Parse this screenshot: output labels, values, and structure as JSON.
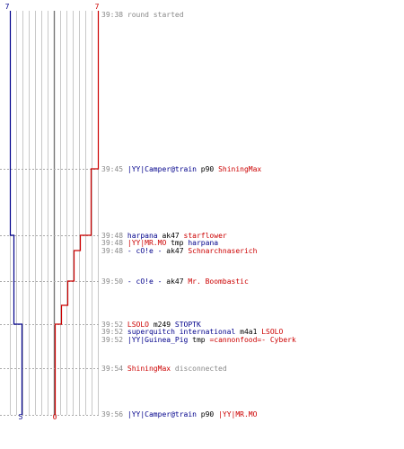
{
  "colors": {
    "team_blue": "#00008b",
    "team_red": "#cc0000",
    "event_text": "#000000",
    "meta_text": "#888888",
    "grid": "#c8c8c8",
    "center_line": "#777777",
    "dash": "#aaaaaa"
  },
  "chart_data": {
    "type": "line",
    "title": "",
    "x_range": [
      -7,
      7
    ],
    "header": {
      "blue_label": "7",
      "red_label": "7"
    },
    "footer": {
      "blue_label": "5",
      "red_label": "0"
    },
    "series": [
      {
        "team": "blue",
        "points": [
          {
            "time": "39:38",
            "count": 7
          },
          {
            "time": "39:48",
            "count": 6
          },
          {
            "time": "39:52",
            "count": 5
          },
          {
            "time": "39:56",
            "count": 5
          }
        ]
      },
      {
        "team": "red",
        "points": [
          {
            "time": "39:38",
            "count": 7
          },
          {
            "time": "39:45",
            "count": 6
          },
          {
            "time": "39:48",
            "count": 5
          },
          {
            "time": "39:49",
            "count": 4
          },
          {
            "time": "39:50",
            "count": 3
          },
          {
            "time": "39:51",
            "count": 2
          },
          {
            "time": "39:52",
            "count": 0
          }
        ]
      }
    ],
    "events": [
      {
        "time": "39:38",
        "parts": [
          {
            "text": "round started",
            "color": "meta"
          }
        ]
      },
      {
        "time": "39:45",
        "parts": [
          {
            "text": "|YY|Camper@train",
            "color": "blue"
          },
          {
            "text": " p90 ",
            "color": "text"
          },
          {
            "text": "ShiningMax",
            "color": "red"
          }
        ]
      },
      {
        "time": "39:48",
        "parts": [
          {
            "text": "harpana",
            "color": "blue"
          },
          {
            "text": " ak47 ",
            "color": "text"
          },
          {
            "text": "starflower",
            "color": "red"
          }
        ]
      },
      {
        "time": "39:48",
        "parts": [
          {
            "text": "|YY|MR.MO",
            "color": "red"
          },
          {
            "text": " tmp ",
            "color": "text"
          },
          {
            "text": "harpana",
            "color": "blue"
          }
        ]
      },
      {
        "time": "39:48",
        "parts": [
          {
            "text": "- cO!e -",
            "color": "blue"
          },
          {
            "text": " ak47 ",
            "color": "text"
          },
          {
            "text": "Schnarchnaserich",
            "color": "red"
          }
        ]
      },
      {
        "time": "39:50",
        "parts": [
          {
            "text": "- cO!e -",
            "color": "blue"
          },
          {
            "text": " ak47 ",
            "color": "text"
          },
          {
            "text": "Mr. Boombastic",
            "color": "red"
          }
        ]
      },
      {
        "time": "39:52",
        "parts": [
          {
            "text": "LSOLO",
            "color": "red"
          },
          {
            "text": " m249 ",
            "color": "text"
          },
          {
            "text": "STOPTK",
            "color": "blue"
          }
        ]
      },
      {
        "time": "39:52",
        "parts": [
          {
            "text": "superquitch international",
            "color": "blue"
          },
          {
            "text": " m4a1 ",
            "color": "text"
          },
          {
            "text": "LSOLO",
            "color": "red"
          }
        ]
      },
      {
        "time": "39:52",
        "parts": [
          {
            "text": "|YY|Guinea_Pig",
            "color": "blue"
          },
          {
            "text": " tmp ",
            "color": "text"
          },
          {
            "text": "=cannonfood=- Cyberk",
            "color": "red"
          }
        ]
      },
      {
        "time": "39:54",
        "parts": [
          {
            "text": "ShiningMax",
            "color": "red"
          },
          {
            "text": " disconnected",
            "color": "meta"
          }
        ]
      },
      {
        "time": "39:56",
        "parts": [
          {
            "text": "|YY|Camper@train",
            "color": "blue"
          },
          {
            "text": " p90 ",
            "color": "text"
          },
          {
            "text": "|YY|MR.MO",
            "color": "red"
          }
        ]
      }
    ]
  }
}
